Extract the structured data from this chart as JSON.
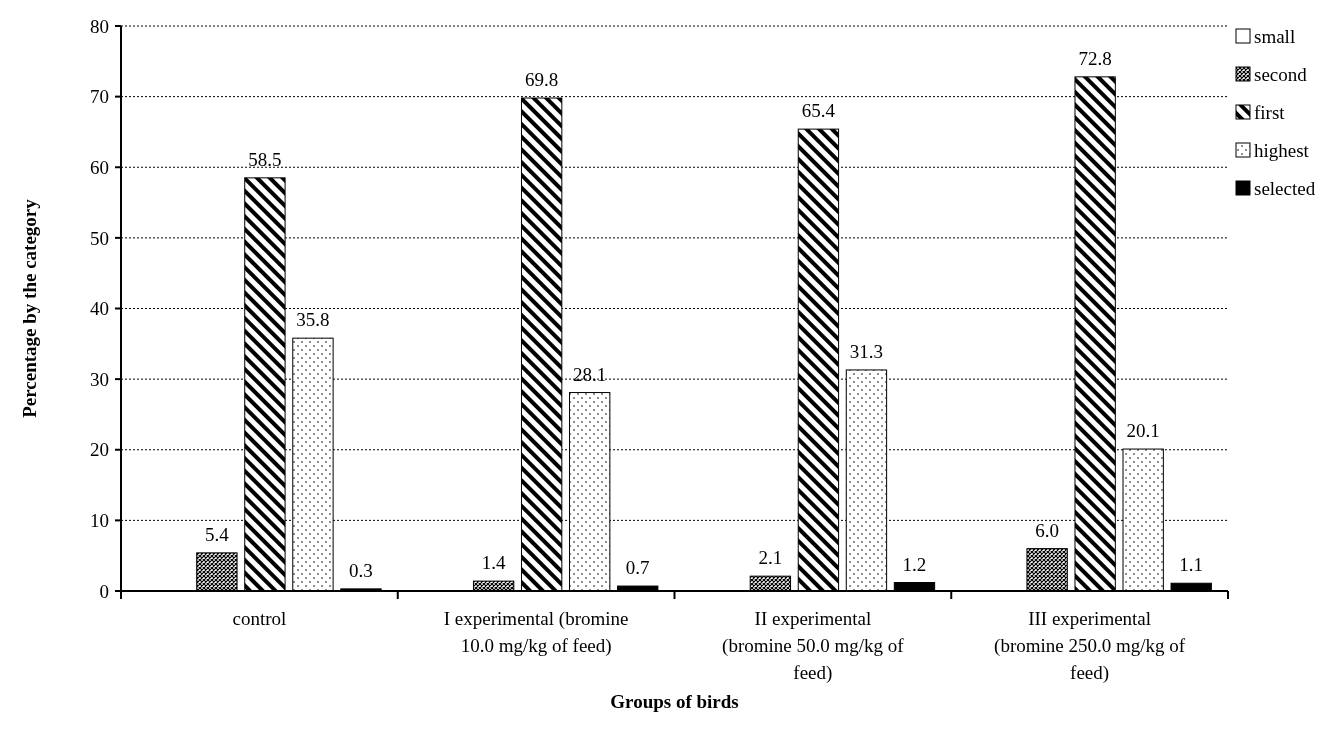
{
  "chart_data": {
    "type": "bar",
    "xlabel": "Groups of birds",
    "ylabel": "Percentage by the category",
    "categories": [
      "control",
      "I experimental (bromine 10.0 mg/kg of feed)",
      "II experimental (bromine 50.0 mg/kg of feed)",
      "III experimental (bromine 250.0 mg/kg of feed)"
    ],
    "series": [
      {
        "name": "small",
        "color": "#ffffff",
        "values": [
          0,
          0,
          0,
          0
        ],
        "value_labels": [
          null,
          null,
          null,
          null
        ]
      },
      {
        "name": "second",
        "color": "#000000",
        "values": [
          5.4,
          1.4,
          2.1,
          6.0
        ],
        "value_labels": [
          "5.4",
          "1.4",
          "2.1",
          "6.0"
        ]
      },
      {
        "name": "first",
        "color": "#000000",
        "values": [
          58.5,
          69.8,
          65.4,
          72.8
        ],
        "value_labels": [
          "58.5",
          "69.8",
          "65.4",
          "72.8"
        ]
      },
      {
        "name": "highest",
        "color": "#000000",
        "values": [
          35.8,
          28.1,
          31.3,
          20.1
        ],
        "value_labels": [
          "35.8",
          "28.1",
          "31.3",
          "20.1"
        ]
      },
      {
        "name": "selected",
        "color": "#000000",
        "values": [
          0.3,
          0.7,
          1.2,
          1.1
        ],
        "value_labels": [
          "0.3",
          "0.7",
          "1.2",
          "1.1"
        ]
      }
    ],
    "ylim": [
      0,
      80
    ],
    "yticks": [
      0,
      10,
      20,
      30,
      40,
      50,
      60,
      70,
      80
    ],
    "grid": "y",
    "legend": "top right"
  }
}
